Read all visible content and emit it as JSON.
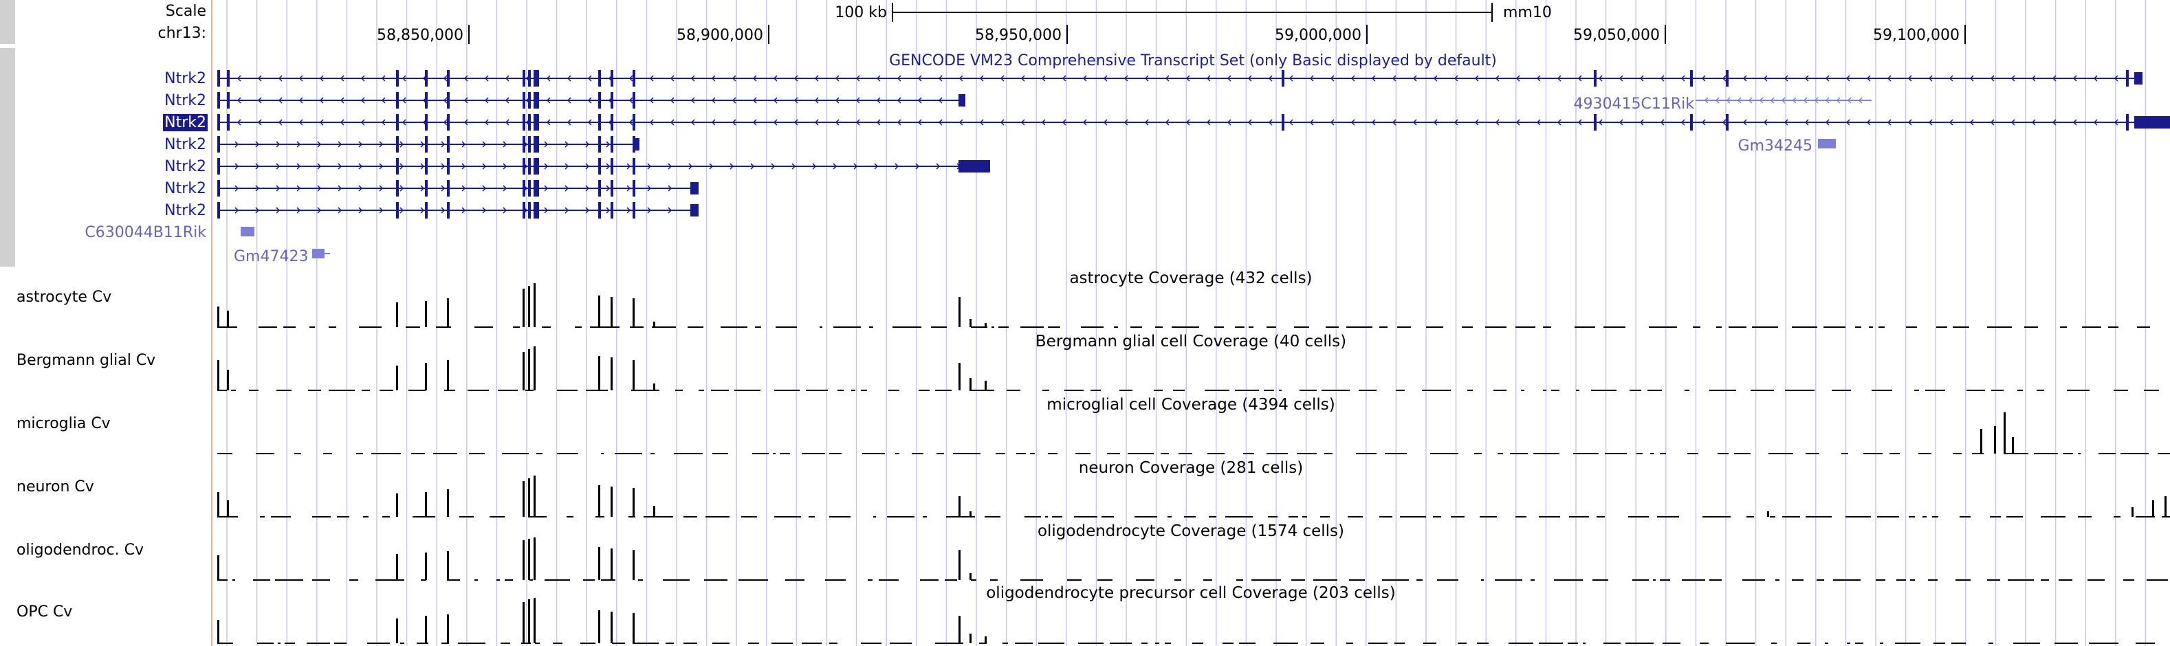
{
  "header": {
    "scale_label": "Scale",
    "chrom_label": "chr13:",
    "scale_bar_text": "100 kb",
    "assembly": "mm10",
    "ticks": [
      "58,850,000",
      "58,900,000",
      "58,950,000",
      "59,000,000",
      "59,050,000",
      "59,100,000"
    ]
  },
  "gene_track": {
    "title": "GENCODE VM23 Comprehensive Transcript Set (only Basic displayed by default)",
    "transcripts": [
      "Ntrk2",
      "Ntrk2",
      "Ntrk2",
      "Ntrk2",
      "Ntrk2",
      "Ntrk2",
      "Ntrk2"
    ],
    "other_genes": [
      "C630044B11Rik",
      "Gm47423",
      "4930415C11Rik",
      "Gm34245"
    ]
  },
  "coverage_tracks": [
    {
      "label": "astrocyte Cv",
      "title": "astrocyte Coverage (432 cells)"
    },
    {
      "label": "Bergmann glial Cv",
      "title": "Bergmann glial cell Coverage (40 cells)"
    },
    {
      "label": "microglia Cv",
      "title": "microglial cell Coverage (4394 cells)"
    },
    {
      "label": "neuron Cv",
      "title": "neuron Coverage (281 cells)"
    },
    {
      "label": "oligodendroc. Cv",
      "title": "oligodendrocyte Coverage (1574 cells)"
    },
    {
      "label": "OPC Cv",
      "title": "oligodendrocyte precursor cell Coverage (203 cells)"
    }
  ],
  "colors": {
    "gene": "#1a1a8a",
    "gene_light": "#7f7fd9",
    "coverage": "#000000",
    "grid": "#c8c8f0",
    "sidebar": "#d0d0d0"
  }
}
